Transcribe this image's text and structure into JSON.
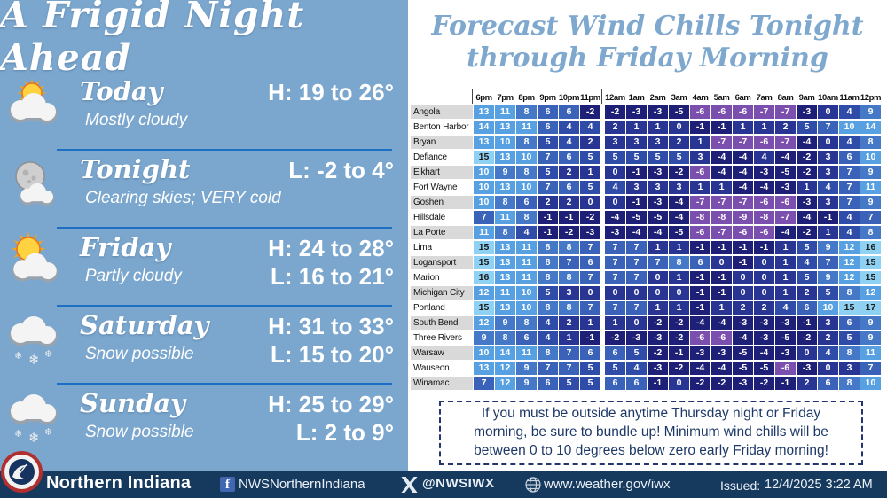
{
  "colors": {
    "left_bg": "#7BA7CE",
    "right_bg": "#FFFFFF",
    "footer_bg": "#16395E",
    "divider_blue": "#1D6FC3",
    "right_title_blue": "#7FA8CE",
    "advisory_text": "#1E3968",
    "label_stripe": "#D9D9D9"
  },
  "left_panel": {
    "title": "A Frigid Night Ahead",
    "days": [
      {
        "name": "Today",
        "condition": "Mostly cloudy",
        "icon": "sun-behind-clouds-icon",
        "temp_line1": "H: 19 to 26°",
        "temp_line2": ""
      },
      {
        "name": "Tonight",
        "condition": "Clearing skies; VERY cold",
        "icon": "moon-with-cloud-icon",
        "temp_line1": "L: -2 to 4°",
        "temp_line2": ""
      },
      {
        "name": "Friday",
        "condition": "Partly cloudy",
        "icon": "sun-and-cloud-icon",
        "temp_line1": "H: 24 to 28°",
        "temp_line2": "L: 16 to 21°"
      },
      {
        "name": "Saturday",
        "condition": "Snow possible",
        "icon": "snow-cloud-icon",
        "temp_line1": "H: 31 to 33°",
        "temp_line2": "L: 15 to 20°"
      },
      {
        "name": "Sunday",
        "condition": "Snow possible",
        "icon": "snow-cloud-icon",
        "temp_line1": "H: 25 to 29°",
        "temp_line2": "L: 2 to 9°"
      }
    ]
  },
  "right_panel": {
    "title_line1": "Forecast Wind Chills Tonight",
    "title_line2": "through Friday Morning",
    "advisory": "If you must be outside anytime Thursday night or Friday morning, be sure to bundle up! Minimum wind chills will be between 0 to 10 degrees below zero early Friday morning!"
  },
  "chart_data": {
    "type": "table",
    "title": "Forecast Wind Chills Tonight through Friday Morning",
    "unit": "wind chill °F",
    "columns": [
      "6pm",
      "7pm",
      "8pm",
      "9pm",
      "10pm",
      "11pm",
      "12am",
      "1am",
      "2am",
      "3am",
      "4am",
      "5am",
      "6am",
      "7am",
      "8am",
      "9am",
      "10am",
      "11am",
      "12pm"
    ],
    "rows": [
      {
        "city": "Angola",
        "values": [
          13,
          11,
          8,
          6,
          6,
          -2,
          -2,
          -3,
          -3,
          -5,
          -6,
          -6,
          -6,
          -7,
          -7,
          -3,
          0,
          4,
          9
        ]
      },
      {
        "city": "Benton Harbor",
        "values": [
          14,
          13,
          11,
          6,
          4,
          4,
          2,
          1,
          1,
          0,
          -1,
          -1,
          1,
          1,
          2,
          5,
          7,
          10,
          14
        ]
      },
      {
        "city": "Bryan",
        "values": [
          13,
          10,
          8,
          5,
          4,
          2,
          3,
          3,
          3,
          2,
          1,
          -7,
          -7,
          -6,
          -7,
          -4,
          0,
          4,
          8
        ]
      },
      {
        "city": "Defiance",
        "values": [
          15,
          13,
          10,
          7,
          6,
          5,
          5,
          5,
          5,
          5,
          3,
          -4,
          -4,
          4,
          -4,
          -2,
          3,
          6,
          10
        ]
      },
      {
        "city": "Elkhart",
        "values": [
          10,
          9,
          8,
          5,
          2,
          1,
          0,
          -1,
          -3,
          -2,
          -6,
          -4,
          -4,
          -3,
          -5,
          -2,
          3,
          7,
          9
        ]
      },
      {
        "city": "Fort Wayne",
        "values": [
          10,
          13,
          10,
          7,
          6,
          5,
          4,
          3,
          3,
          3,
          1,
          1,
          -4,
          -4,
          -3,
          1,
          4,
          7,
          11
        ]
      },
      {
        "city": "Goshen",
        "values": [
          10,
          8,
          6,
          2,
          2,
          0,
          0,
          -1,
          -3,
          -4,
          -7,
          -7,
          -7,
          -6,
          -6,
          -3,
          3,
          7,
          9
        ]
      },
      {
        "city": "Hillsdale",
        "values": [
          7,
          11,
          8,
          -1,
          -1,
          -2,
          -4,
          -5,
          -5,
          -4,
          -8,
          -8,
          -9,
          -8,
          -7,
          -4,
          -1,
          4,
          7
        ]
      },
      {
        "city": "La Porte",
        "values": [
          11,
          8,
          4,
          -1,
          -2,
          -3,
          -3,
          -4,
          -4,
          -5,
          -6,
          -7,
          -6,
          -6,
          -4,
          -2,
          1,
          4,
          8
        ]
      },
      {
        "city": "Lima",
        "values": [
          15,
          13,
          11,
          8,
          8,
          7,
          7,
          7,
          1,
          1,
          -1,
          -1,
          -1,
          -1,
          1,
          5,
          9,
          12,
          16
        ]
      },
      {
        "city": "Logansport",
        "values": [
          15,
          13,
          11,
          8,
          7,
          6,
          7,
          7,
          7,
          8,
          6,
          0,
          -1,
          0,
          1,
          4,
          7,
          12,
          15
        ]
      },
      {
        "city": "Marion",
        "values": [
          16,
          13,
          11,
          8,
          8,
          7,
          7,
          7,
          0,
          1,
          -1,
          -1,
          0,
          0,
          1,
          5,
          9,
          12,
          15
        ]
      },
      {
        "city": "Michigan City",
        "values": [
          12,
          11,
          10,
          5,
          3,
          0,
          0,
          0,
          0,
          0,
          -1,
          -1,
          0,
          0,
          1,
          2,
          5,
          8,
          12
        ]
      },
      {
        "city": "Portland",
        "values": [
          15,
          13,
          10,
          8,
          8,
          7,
          7,
          7,
          1,
          1,
          -1,
          1,
          2,
          2,
          4,
          6,
          10,
          15,
          17
        ]
      },
      {
        "city": "South Bend",
        "values": [
          12,
          9,
          8,
          4,
          2,
          1,
          1,
          0,
          -2,
          -2,
          -4,
          -4,
          -3,
          -3,
          -3,
          -1,
          3,
          6,
          9
        ]
      },
      {
        "city": "Three Rivers",
        "values": [
          9,
          8,
          6,
          4,
          1,
          -1,
          -2,
          -3,
          -3,
          -2,
          -6,
          -6,
          -4,
          -3,
          -5,
          -2,
          2,
          5,
          9
        ]
      },
      {
        "city": "Warsaw",
        "values": [
          10,
          14,
          11,
          8,
          7,
          6,
          6,
          5,
          -2,
          -1,
          -3,
          -3,
          -5,
          -4,
          -3,
          0,
          4,
          8,
          11
        ]
      },
      {
        "city": "Wauseon",
        "values": [
          13,
          12,
          9,
          7,
          7,
          5,
          5,
          4,
          -3,
          -2,
          -4,
          -4,
          -5,
          -5,
          -6,
          -3,
          0,
          3,
          7
        ]
      },
      {
        "city": "Winamac",
        "values": [
          7,
          12,
          9,
          6,
          5,
          5,
          6,
          6,
          -1,
          0,
          -2,
          -2,
          -3,
          -2,
          -1,
          2,
          6,
          8,
          10
        ]
      }
    ],
    "color_scale": [
      {
        "min": 15,
        "bg": "#8FD1F2",
        "fg": "#1A1A1A"
      },
      {
        "min": 10,
        "bg": "#57A0E2",
        "fg": "#FFFFFF"
      },
      {
        "min": 8,
        "bg": "#4579C8",
        "fg": "#FFFFFF"
      },
      {
        "min": 6,
        "bg": "#3A62B8",
        "fg": "#FFFFFF"
      },
      {
        "min": 4,
        "bg": "#2F4CA8",
        "fg": "#FFFFFF"
      },
      {
        "min": 0,
        "bg": "#283593",
        "fg": "#FFFFFF"
      },
      {
        "min": -5,
        "bg": "#1E2077",
        "fg": "#FFFFFF"
      },
      {
        "min": -99,
        "bg": "#7B4FAE",
        "fg": "#FFFFFF"
      }
    ],
    "color_overrides": [
      {
        "row": 3,
        "col": 13,
        "bg": "#283593"
      }
    ],
    "legend_position": "none",
    "grid": true
  },
  "footer": {
    "office": "Northern Indiana",
    "facebook_handle": "NWSNorthernIndiana",
    "x_handle": "@NWSIWX",
    "website": "www.weather.gov/iwx",
    "issued_label": "Issued:",
    "issued_datetime": "12/4/2025 3:22 AM"
  }
}
